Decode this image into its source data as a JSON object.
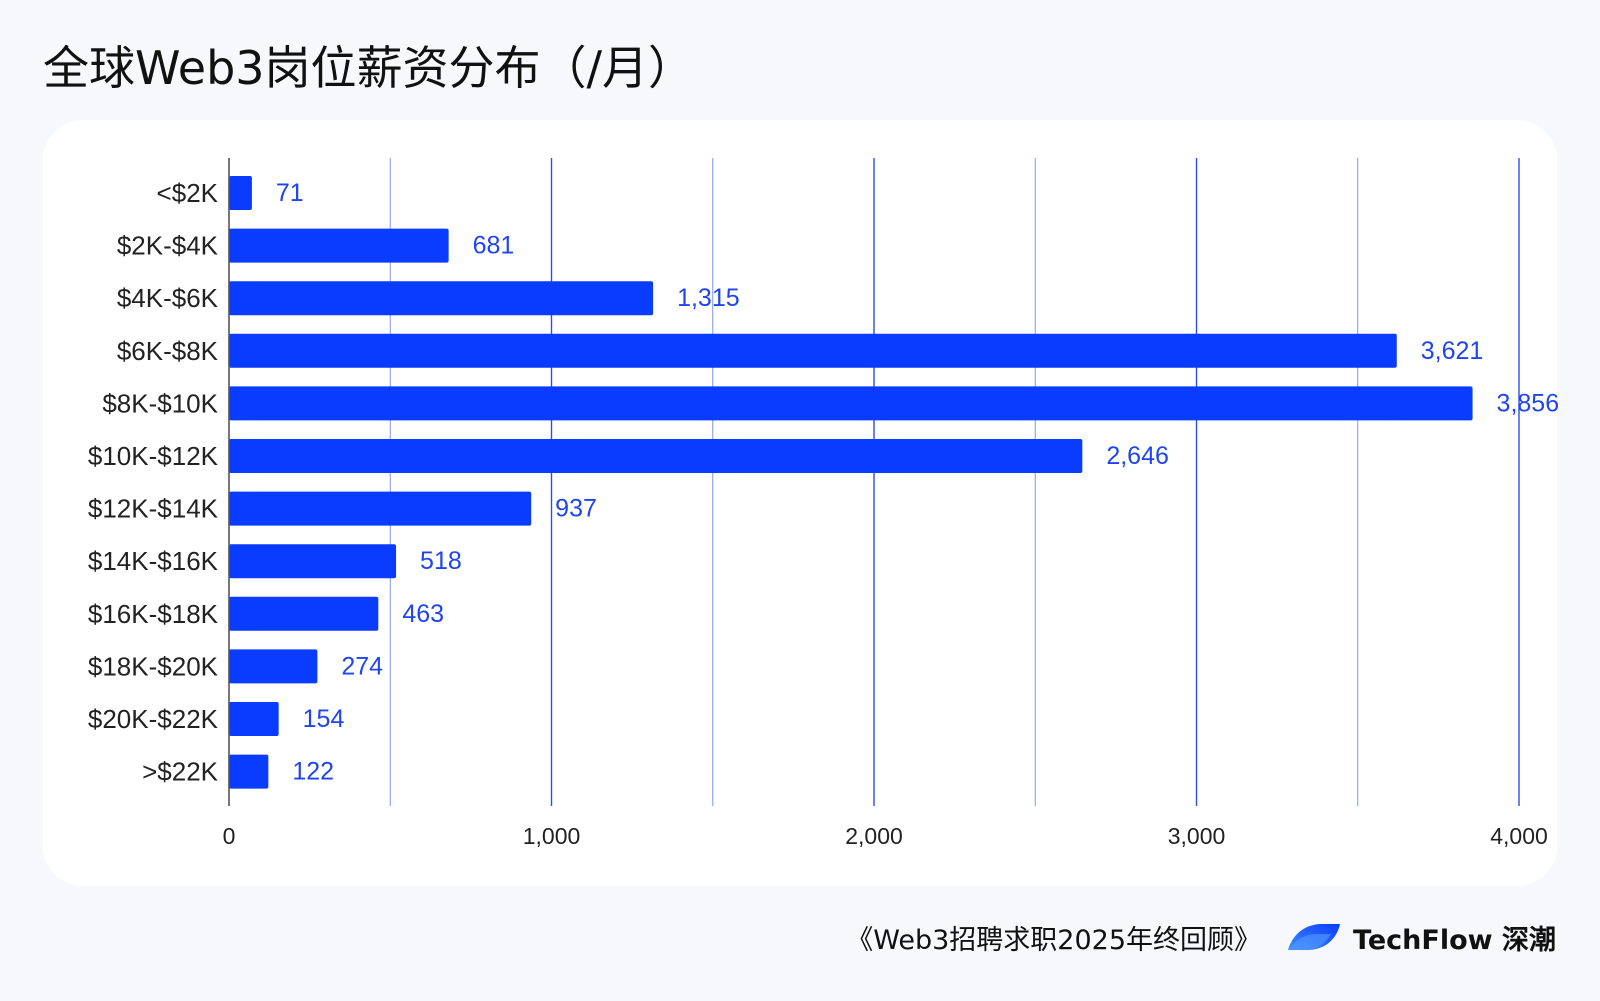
{
  "chart_data": {
    "type": "bar",
    "orientation": "horizontal",
    "title": "全球Web3岗位薪资分布（/月）",
    "categories": [
      "<$2K",
      "$2K-$4K",
      "$4K-$6K",
      "$6K-$8K",
      "$8K-$10K",
      "$10K-$12K",
      "$12K-$14K",
      "$14K-$16K",
      "$16K-$18K",
      "$18K-$20K",
      "$20K-$22K",
      ">$22K"
    ],
    "values": [
      71,
      681,
      1315,
      3621,
      3856,
      2646,
      937,
      518,
      463,
      274,
      154,
      122
    ],
    "data_labels": [
      "71",
      "681",
      "1,315",
      "3,621",
      "3,856",
      "2,646",
      "937",
      "518",
      "463",
      "274",
      "154",
      "122"
    ],
    "xlim": [
      0,
      4000
    ],
    "xticks": [
      0,
      1000,
      2000,
      3000,
      4000
    ],
    "xtick_labels": [
      "0",
      "1,000",
      "2,000",
      "3,000",
      "4,000"
    ],
    "grid": true,
    "grid_step": 500,
    "legend": false,
    "xlabel": "",
    "ylabel": ""
  },
  "colors": {
    "background": "#f6f8fc",
    "card": "#ffffff",
    "bar": "#0a3cff",
    "data_label": "#1f44f0",
    "grid_major": "#2c4fe6",
    "grid_minor": "#8096f2",
    "axis": "#555555",
    "text": "#111111",
    "logo_light": "#3d8bff",
    "logo_dark": "#0a3cff"
  },
  "footer": {
    "source": "《Web3招聘求职2025年终回顾》",
    "brand": "TechFlow 深潮",
    "logo_icon": "techflow-leaf-icon"
  }
}
